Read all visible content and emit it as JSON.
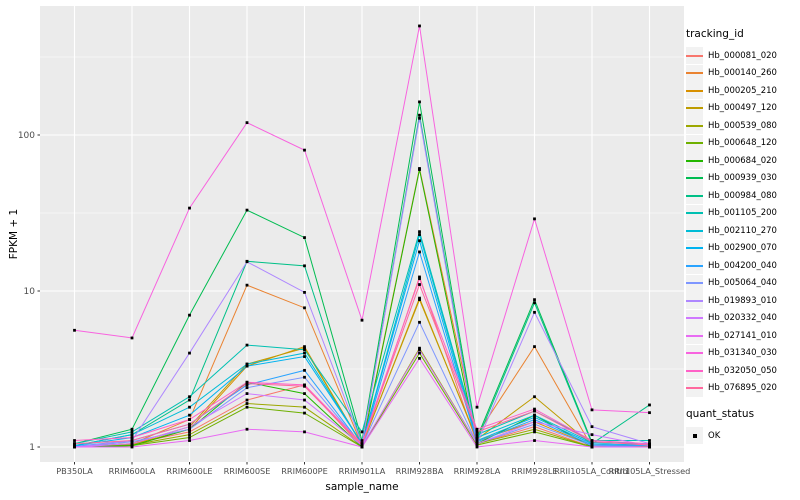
{
  "chart_data": {
    "type": "line",
    "title": "",
    "xlabel": "sample_name",
    "ylabel": "FPKM + 1",
    "y_scale": "log10",
    "ylim": [
      0.8,
      650
    ],
    "y_ticks": [
      1,
      10,
      100
    ],
    "y_minor": [
      3.162,
      31.62,
      316.2
    ],
    "grid": true,
    "legend_position": "right",
    "legend_title": "tracking_id",
    "point_legend_title": "quant_status",
    "point_legend_label": "OK",
    "point_color": "#000000",
    "point_shape": "square",
    "categories": [
      "PB350LA",
      "RRIM600LA",
      "RRIM600LE",
      "RRIM600SE",
      "RRIM600PE",
      "RRIM901LA",
      "RRIM928BA",
      "RRIM928LA",
      "RRIM928LE",
      "RRII105LA_Control",
      "RRII105LA_Stressed"
    ],
    "series": [
      {
        "name": "Hb_000081_020",
        "color": "#F8766D",
        "values": [
          1.0,
          1.05,
          1.25,
          2.0,
          2.5,
          1.0,
          12.3,
          1.05,
          1.35,
          1.0,
          1.0
        ]
      },
      {
        "name": "Hb_000140_260",
        "color": "#EA8331",
        "values": [
          1.0,
          1.05,
          1.5,
          10.9,
          7.8,
          1.02,
          61,
          1.2,
          4.4,
          1.0,
          1.02
        ]
      },
      {
        "name": "Hb_000205_210",
        "color": "#D89000",
        "values": [
          1.0,
          1.04,
          1.3,
          3.3,
          4.4,
          1.02,
          9.0,
          1.1,
          1.45,
          1.02,
          1.0
        ]
      },
      {
        "name": "Hb_000497_120",
        "color": "#BE9C00",
        "values": [
          1.0,
          1.05,
          1.35,
          3.4,
          4.3,
          1.03,
          8.8,
          1.12,
          2.1,
          1.03,
          1.01
        ]
      },
      {
        "name": "Hb_000539_080",
        "color": "#9CA700",
        "values": [
          1.0,
          1.03,
          1.2,
          1.9,
          1.8,
          1.0,
          4.3,
          1.05,
          1.3,
          1.0,
          1.0
        ]
      },
      {
        "name": "Hb_000648_120",
        "color": "#6FB000",
        "values": [
          1.0,
          1.02,
          1.15,
          1.8,
          1.65,
          1.0,
          4.0,
          1.03,
          1.25,
          1.0,
          1.0
        ]
      },
      {
        "name": "Hb_000684_020",
        "color": "#24B700",
        "values": [
          1.0,
          1.02,
          1.3,
          2.6,
          2.2,
          1.0,
          60,
          1.05,
          1.6,
          1.0,
          1.0
        ]
      },
      {
        "name": "Hb_000939_030",
        "color": "#00BC51",
        "values": [
          1.05,
          1.3,
          7.0,
          33,
          22,
          1.1,
          163,
          1.15,
          8.8,
          1.07,
          1.05
        ]
      },
      {
        "name": "Hb_000984_080",
        "color": "#00C087",
        "values": [
          1.02,
          1.2,
          2.0,
          15.5,
          14.5,
          1.05,
          134,
          1.1,
          8.4,
          1.05,
          1.86
        ]
      },
      {
        "name": "Hb_001105_200",
        "color": "#00C0B2",
        "values": [
          1.05,
          1.25,
          2.1,
          4.5,
          4.2,
          1.25,
          24,
          1.2,
          1.7,
          1.1,
          1.1
        ]
      },
      {
        "name": "Hb_002110_270",
        "color": "#00BCD6",
        "values": [
          1.02,
          1.2,
          1.8,
          3.4,
          4.0,
          1.05,
          23,
          1.15,
          1.6,
          1.07,
          1.05
        ]
      },
      {
        "name": "Hb_002900_070",
        "color": "#00B3F0",
        "values": [
          1.02,
          1.15,
          1.6,
          3.3,
          3.8,
          1.05,
          21,
          1.1,
          1.55,
          1.05,
          1.03
        ]
      },
      {
        "name": "Hb_004200_040",
        "color": "#29A3FF",
        "values": [
          1.01,
          1.1,
          1.4,
          2.5,
          3.1,
          1.02,
          17.8,
          1.08,
          1.5,
          1.03,
          1.02
        ]
      },
      {
        "name": "Hb_005064_040",
        "color": "#7E96FF",
        "values": [
          1.0,
          1.08,
          1.3,
          2.4,
          2.8,
          1.02,
          6.3,
          1.05,
          1.4,
          1.02,
          1.0
        ]
      },
      {
        "name": "Hb_019893_010",
        "color": "#AE87FF",
        "values": [
          1.0,
          1.1,
          4.0,
          15.4,
          9.8,
          1.05,
          128,
          1.05,
          7.3,
          1.35,
          1.05
        ]
      },
      {
        "name": "Hb_020332_040",
        "color": "#CF78FF",
        "values": [
          1.0,
          1.05,
          1.35,
          2.2,
          2.0,
          1.02,
          4.2,
          1.05,
          1.45,
          1.2,
          1.02
        ]
      },
      {
        "name": "Hb_027141_010",
        "color": "#E86BF3",
        "values": [
          1.0,
          1.0,
          1.1,
          1.3,
          1.25,
          1.0,
          3.7,
          1.0,
          1.1,
          1.0,
          1.0
        ]
      },
      {
        "name": "Hb_031340_030",
        "color": "#F863DF",
        "values": [
          5.6,
          5.0,
          34,
          120,
          80,
          6.5,
          500,
          1.8,
          29,
          1.73,
          1.66
        ]
      },
      {
        "name": "Hb_032050_050",
        "color": "#FF61C7",
        "values": [
          1.1,
          1.15,
          1.5,
          2.6,
          2.5,
          1.05,
          12.0,
          1.3,
          1.75,
          1.1,
          1.05
        ]
      },
      {
        "name": "Hb_076895_020",
        "color": "#FF689E",
        "values": [
          1.05,
          1.1,
          1.4,
          2.55,
          2.45,
          1.03,
          11.0,
          1.25,
          1.7,
          1.08,
          1.03
        ]
      }
    ]
  },
  "theme": {
    "panel_bg": "#EBEBEB",
    "grid_color": "#FFFFFF",
    "tick_text_color": "#4D4D4D",
    "tick_mark_color": "#333333",
    "legend_key_bg": "#F2F2F2"
  }
}
